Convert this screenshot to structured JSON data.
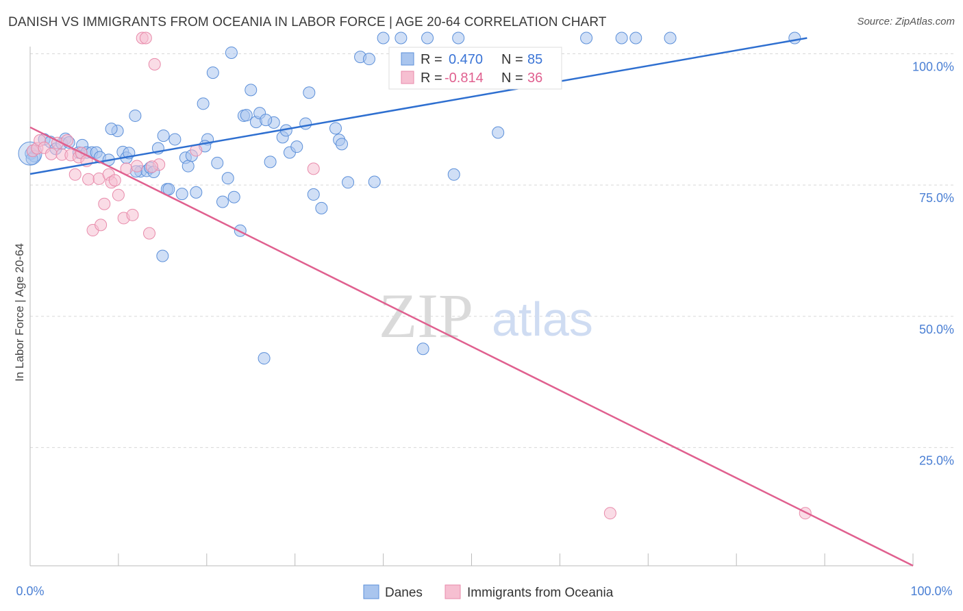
{
  "title": "DANISH VS IMMIGRANTS FROM OCEANIA IN LABOR FORCE | AGE 20-64 CORRELATION CHART",
  "source": "Source: ZipAtlas.com",
  "watermark": {
    "zip": "ZIP",
    "atlas": "atlas"
  },
  "colors": {
    "blue_fill": "#a9c5ee",
    "blue_stroke": "#5b8fd9",
    "blue_line": "#2e6fd0",
    "pink_fill": "#f6bfd1",
    "pink_stroke": "#e88aaa",
    "pink_line": "#e0608f",
    "grid": "#d8d8d8",
    "tick_text": "#4a7fd4"
  },
  "stats": {
    "blue": {
      "r_label": "R =",
      "r_value": "0.470",
      "n_label": "N =",
      "n_value": "85"
    },
    "pink": {
      "r_label": "R =",
      "r_value": "-0.814",
      "n_label": "N =",
      "n_value": "36"
    }
  },
  "chart_data": {
    "type": "scatter",
    "ylabel": "In Labor Force | Age 20-64",
    "xlim": [
      0,
      100
    ],
    "ylim": [
      0,
      100
    ],
    "x_tick_labels": {
      "min": "0.0%",
      "max": "100.0%"
    },
    "y_ticks": [
      {
        "value": 100,
        "label": "100.0%"
      },
      {
        "value": 75,
        "label": "75.0%"
      },
      {
        "value": 50,
        "label": "50.0%"
      },
      {
        "value": 25,
        "label": "25.0%"
      }
    ],
    "grid": "dashed horizontal",
    "legend_position": "bottom-center",
    "series": [
      {
        "name": "Danes",
        "trend": {
          "x0": 0,
          "y0": 77.1,
          "x1": 88,
          "y1": 103.0
        },
        "points": [
          [
            0.1,
            81.0
          ],
          [
            0.3,
            81.5
          ],
          [
            0.5,
            80.5
          ],
          [
            0.2,
            80.0
          ],
          [
            1.6,
            83.7
          ],
          [
            2.3,
            83.2
          ],
          [
            2.9,
            81.9
          ],
          [
            3.6,
            82.9
          ],
          [
            4.0,
            83.8
          ],
          [
            4.4,
            83.1
          ],
          [
            5.5,
            81.2
          ],
          [
            5.9,
            82.6
          ],
          [
            6.4,
            81.2
          ],
          [
            7.0,
            81.2
          ],
          [
            7.5,
            81.2
          ],
          [
            7.9,
            80.3
          ],
          [
            8.9,
            79.8
          ],
          [
            9.9,
            85.3
          ],
          [
            10.5,
            81.3
          ],
          [
            10.9,
            80.2
          ],
          [
            11.2,
            81.1
          ],
          [
            11.9,
            88.2
          ],
          [
            12.5,
            77.6
          ],
          [
            13.2,
            77.7
          ],
          [
            13.6,
            78.3
          ],
          [
            14.0,
            77.5
          ],
          [
            14.5,
            82.0
          ],
          [
            15.1,
            84.4
          ],
          [
            15.5,
            74.2
          ],
          [
            16.4,
            83.7
          ],
          [
            17.2,
            73.3
          ],
          [
            17.6,
            80.2
          ],
          [
            17.9,
            78.6
          ],
          [
            18.3,
            80.6
          ],
          [
            18.8,
            73.6
          ],
          [
            19.6,
            90.5
          ],
          [
            20.1,
            83.7
          ],
          [
            20.7,
            96.4
          ],
          [
            21.2,
            79.2
          ],
          [
            21.8,
            71.8
          ],
          [
            22.4,
            76.3
          ],
          [
            22.8,
            100.2
          ],
          [
            23.1,
            72.7
          ],
          [
            23.8,
            66.3
          ],
          [
            24.2,
            88.2
          ],
          [
            25.0,
            93.1
          ],
          [
            25.6,
            87.0
          ],
          [
            26.0,
            88.7
          ],
          [
            27.2,
            79.4
          ],
          [
            27.6,
            86.9
          ],
          [
            28.6,
            84.1
          ],
          [
            29.0,
            85.4
          ],
          [
            29.4,
            81.2
          ],
          [
            30.2,
            82.3
          ],
          [
            31.2,
            86.7
          ],
          [
            31.6,
            92.6
          ],
          [
            32.1,
            73.2
          ],
          [
            33.0,
            70.6
          ],
          [
            34.6,
            85.8
          ],
          [
            35.0,
            83.6
          ],
          [
            37.4,
            99.4
          ],
          [
            38.4,
            99.0
          ],
          [
            39.0,
            75.6
          ],
          [
            15.0,
            61.5
          ],
          [
            26.5,
            42.0
          ],
          [
            44.5,
            43.8
          ],
          [
            48.0,
            77.0
          ],
          [
            53.0,
            85.0
          ],
          [
            40.0,
            103.0
          ],
          [
            42.0,
            103.0
          ],
          [
            48.5,
            103.0
          ],
          [
            63.0,
            103.0
          ],
          [
            67.0,
            103.0
          ],
          [
            68.6,
            103.0
          ],
          [
            72.5,
            103.0
          ],
          [
            86.6,
            103.0
          ],
          [
            15.7,
            74.2
          ],
          [
            36.0,
            75.5
          ],
          [
            26.7,
            87.4
          ],
          [
            35.3,
            82.8
          ],
          [
            9.2,
            85.7
          ],
          [
            12.0,
            77.6
          ],
          [
            19.8,
            82.4
          ],
          [
            24.5,
            88.3
          ],
          [
            45.0,
            103.0
          ]
        ]
      },
      {
        "name": "Immigrants from Oceania",
        "trend": {
          "x0": 0,
          "y0": 86.0,
          "x1": 100,
          "y1": 2.5
        },
        "points": [
          [
            0.3,
            81.5
          ],
          [
            0.8,
            82.0
          ],
          [
            1.1,
            83.5
          ],
          [
            1.6,
            82.1
          ],
          [
            2.4,
            80.9
          ],
          [
            3.1,
            83.0
          ],
          [
            3.6,
            80.8
          ],
          [
            4.2,
            83.5
          ],
          [
            4.6,
            80.7
          ],
          [
            5.1,
            77.0
          ],
          [
            5.5,
            80.3
          ],
          [
            5.8,
            81.1
          ],
          [
            6.4,
            79.6
          ],
          [
            6.6,
            76.1
          ],
          [
            7.1,
            66.4
          ],
          [
            7.8,
            76.2
          ],
          [
            8.0,
            67.4
          ],
          [
            8.4,
            71.4
          ],
          [
            8.9,
            77.0
          ],
          [
            9.2,
            75.5
          ],
          [
            9.6,
            75.9
          ],
          [
            10.0,
            73.1
          ],
          [
            10.6,
            68.7
          ],
          [
            10.9,
            78.1
          ],
          [
            11.6,
            69.3
          ],
          [
            12.1,
            78.6
          ],
          [
            12.7,
            103.0
          ],
          [
            13.1,
            103.0
          ],
          [
            13.5,
            65.8
          ],
          [
            14.1,
            98.0
          ],
          [
            14.6,
            78.9
          ],
          [
            18.8,
            81.6
          ],
          [
            32.1,
            78.1
          ],
          [
            65.7,
            12.5
          ],
          [
            87.8,
            12.5
          ],
          [
            13.8,
            78.5
          ]
        ]
      }
    ]
  }
}
